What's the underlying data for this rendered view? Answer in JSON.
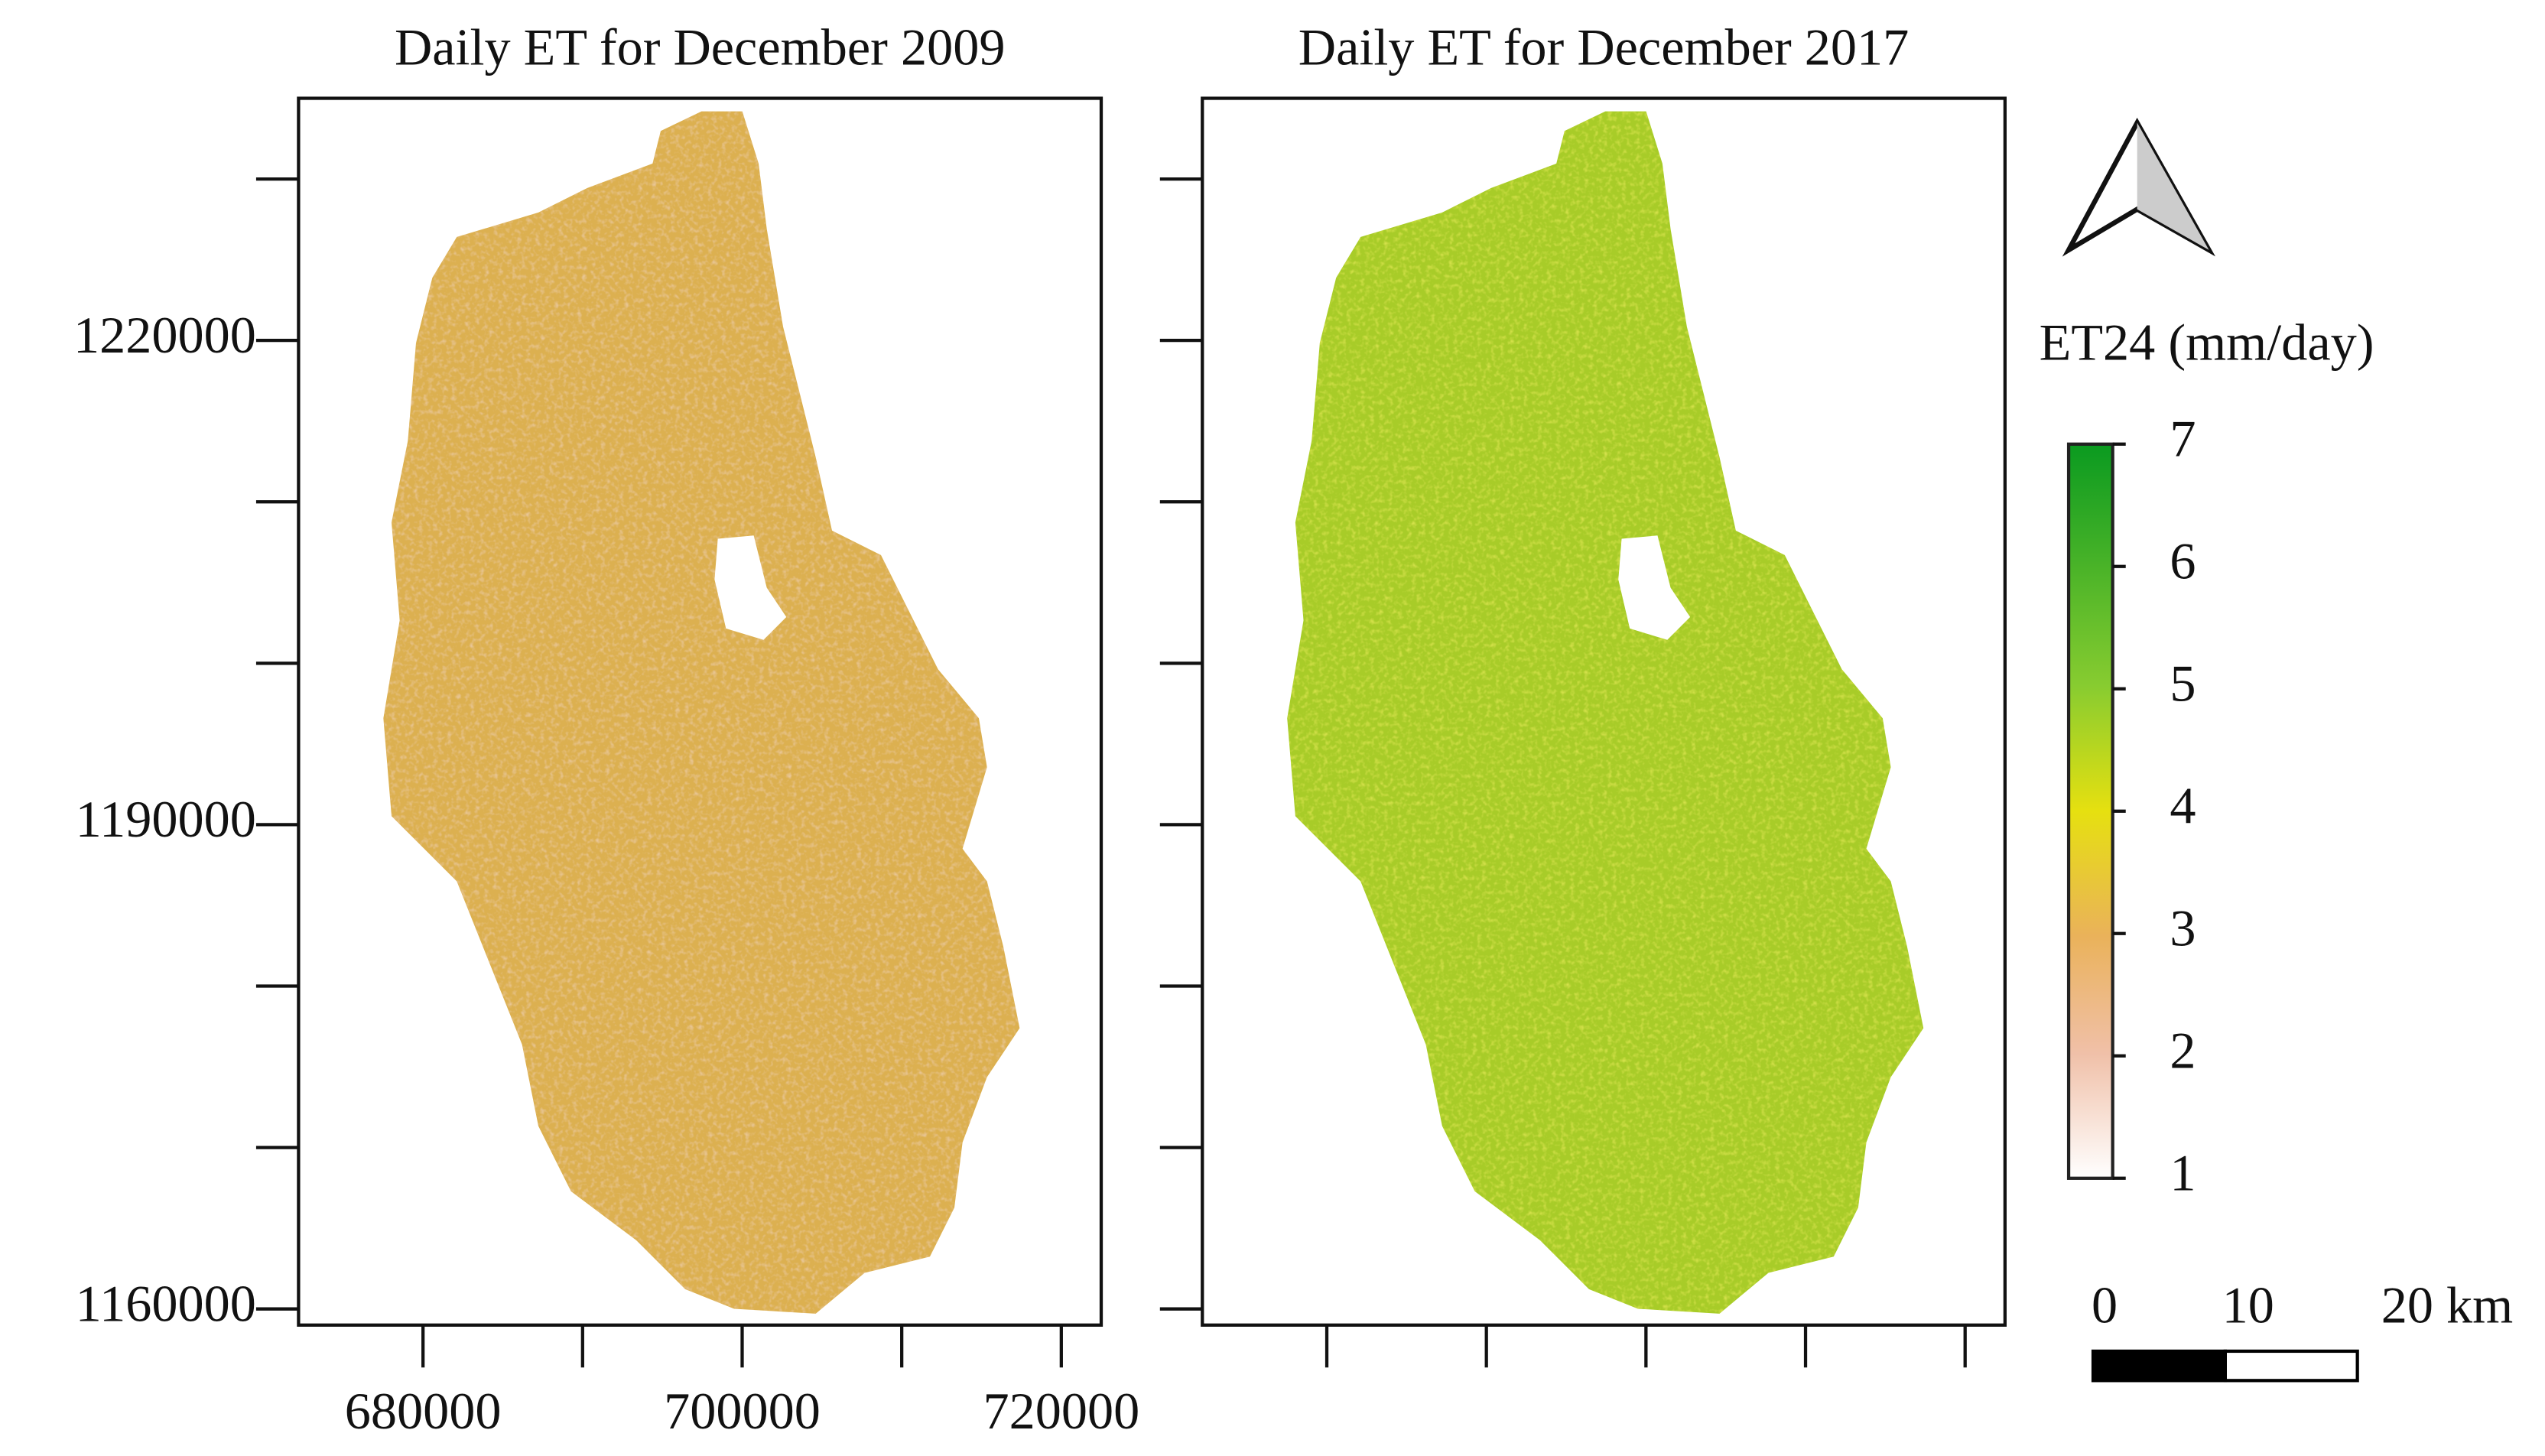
{
  "panels": [
    {
      "title": "Daily ET for December 2009"
    },
    {
      "title": "Daily ET for December 2017"
    }
  ],
  "xlim": [
    672200,
    722500
  ],
  "ylim": [
    1159000,
    1235000
  ],
  "xticks": [
    680000,
    690000,
    700000,
    710000,
    720000
  ],
  "xticklabels": [
    680000,
    700000,
    720000
  ],
  "yticks": [
    1160000,
    1170000,
    1180000,
    1190000,
    1200000,
    1210000,
    1220000,
    1230000
  ],
  "yticklabels": [
    1160000,
    1190000,
    1220000
  ],
  "legend": {
    "title": "ET24 (mm/day)",
    "ticks": [
      1,
      2,
      3,
      4,
      5,
      6,
      7
    ]
  },
  "scale_bar": {
    "labels": [
      "0",
      "10",
      "20 km"
    ]
  }
}
